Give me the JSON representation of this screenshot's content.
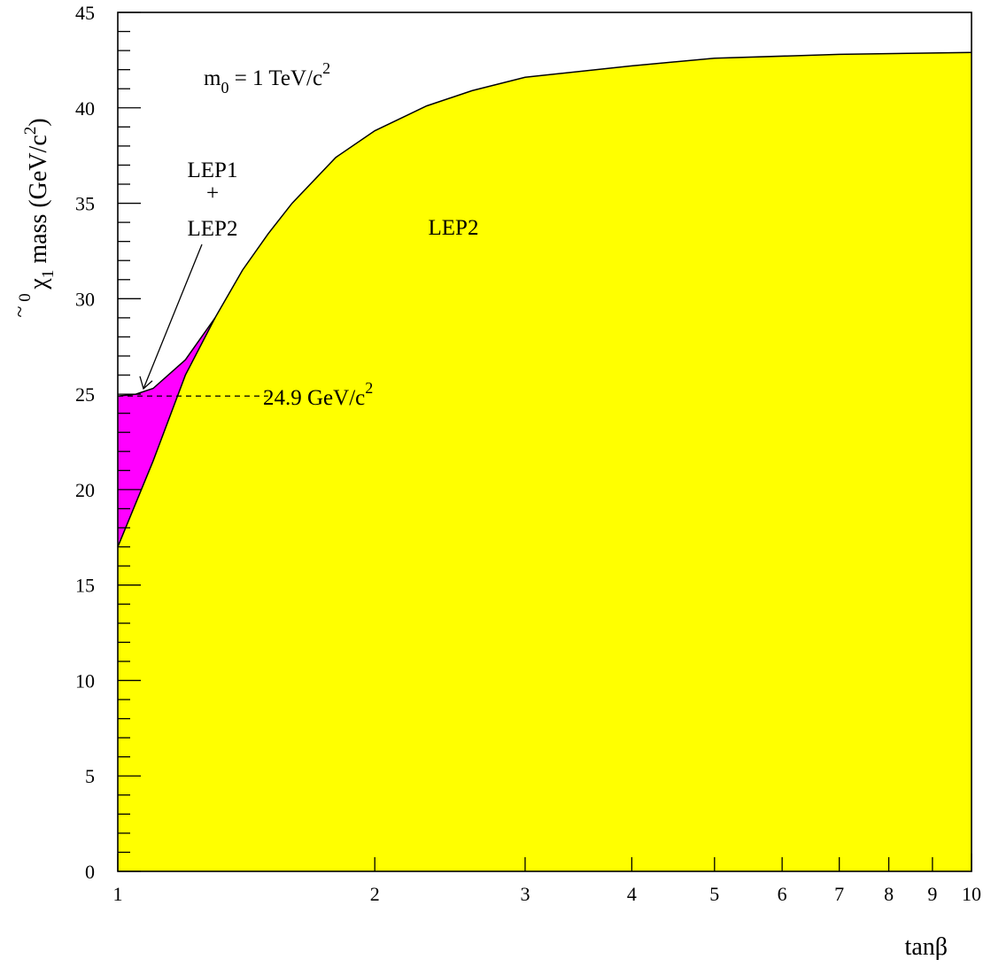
{
  "chart_data": {
    "type": "area",
    "xlabel": "tanβ",
    "ylabel_main": "χ",
    "ylabel_tilde": "~",
    "ylabel_sub": "1",
    "ylabel_sup": "0",
    "ylabel_rest": " mass (GeV/c",
    "ylabel_rest_sup": "2",
    "ylabel_close": ")",
    "x_scale": "log",
    "xlim": [
      1,
      10
    ],
    "ylim": [
      0,
      45
    ],
    "x_ticks": [
      1,
      2,
      3,
      4,
      5,
      6,
      7,
      8,
      9,
      10
    ],
    "x_tick_labels": [
      "1",
      "2",
      "3",
      "4",
      "5",
      "6",
      "7",
      "8",
      "9",
      "10"
    ],
    "y_ticks": [
      0,
      5,
      10,
      15,
      20,
      25,
      30,
      35,
      40,
      45
    ],
    "y_tick_labels": [
      "0",
      "5",
      "10",
      "15",
      "20",
      "25",
      "30",
      "35",
      "40",
      "45"
    ],
    "grid": false,
    "series": [
      {
        "name": "LEP1 + LEP2",
        "color": "#ff00ff",
        "upper": {
          "x": [
            1.0,
            1.05,
            1.1,
            1.2,
            1.3
          ],
          "y": [
            24.9,
            25.0,
            25.3,
            26.8,
            29.0
          ]
        }
      },
      {
        "name": "LEP2",
        "color": "#ffff00",
        "upper": {
          "x": [
            1.0,
            1.1,
            1.2,
            1.3,
            1.4,
            1.5,
            1.6,
            1.8,
            2.0,
            2.3,
            2.6,
            3.0,
            4.0,
            5.0,
            7.0,
            10.0
          ],
          "y": [
            17.0,
            21.5,
            26.0,
            29.0,
            31.5,
            33.4,
            35.0,
            37.4,
            38.8,
            40.1,
            40.9,
            41.6,
            42.2,
            42.6,
            42.8,
            42.9
          ]
        }
      }
    ],
    "reference_line": {
      "y": 24.9,
      "x_end": 1.5,
      "style": "dashed"
    },
    "annotations": {
      "m0_base": "m",
      "m0_sub": "0",
      "m0_rest": " = 1 TeV/c",
      "m0_sup": "2",
      "lep1": "LEP1",
      "plus": "+",
      "lep2_left": "LEP2",
      "lep2_right": "LEP2",
      "ref_base": "24.9 GeV/c",
      "ref_sup": "2"
    }
  }
}
